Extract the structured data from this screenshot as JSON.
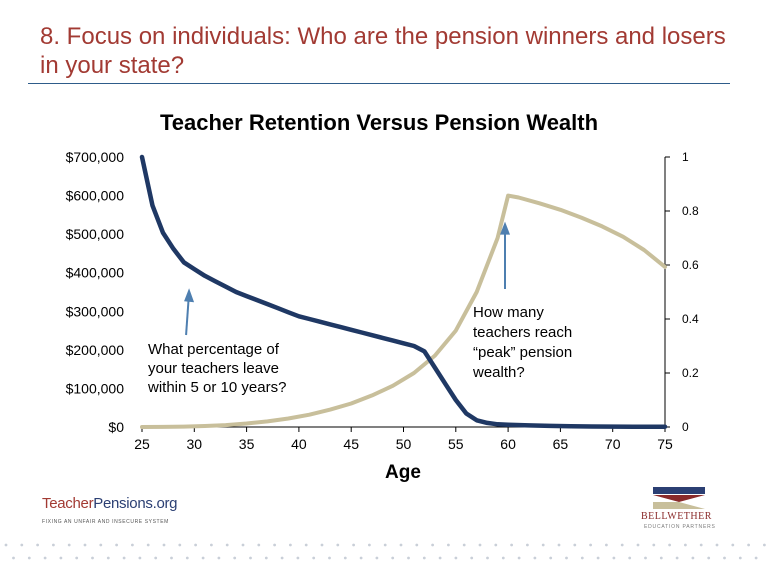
{
  "slide": {
    "title": "8. Focus on individuals: Who are the pension winners and losers in your state?"
  },
  "chart_data": {
    "type": "line",
    "title": "Teacher Retention Versus Pension Wealth",
    "xlabel": "Age",
    "ylabel": "",
    "ylabel_right": "",
    "xlim": [
      25,
      75
    ],
    "ylim": [
      0,
      700000
    ],
    "ylim_right": [
      0,
      1
    ],
    "x_ticks": [
      "25",
      "30",
      "35",
      "40",
      "45",
      "50",
      "55",
      "60",
      "65",
      "70",
      "75"
    ],
    "y_ticks_left": [
      "$0",
      "$100,000",
      "$200,000",
      "$300,000",
      "$400,000",
      "$500,000",
      "$600,000",
      "$700,000"
    ],
    "y_ticks_right": [
      "0",
      "0.2",
      "0.4",
      "0.6",
      "0.8",
      "1"
    ],
    "grid": false,
    "legend": "none",
    "series": [
      {
        "axis": "right",
        "color": "#1f3864",
        "x": [
          25,
          26,
          27,
          28,
          29,
          30,
          31,
          32,
          33,
          34,
          35,
          36,
          37,
          38,
          39,
          40,
          41,
          42,
          43,
          44,
          45,
          46,
          47,
          48,
          49,
          50,
          51,
          52,
          53,
          54,
          55,
          56,
          57,
          58,
          59,
          60,
          62,
          64,
          66,
          68,
          70,
          72,
          74,
          75
        ],
        "y": [
          1.0,
          0.82,
          0.72,
          0.66,
          0.61,
          0.585,
          0.56,
          0.54,
          0.52,
          0.5,
          0.485,
          0.47,
          0.455,
          0.44,
          0.425,
          0.41,
          0.4,
          0.39,
          0.38,
          0.37,
          0.36,
          0.35,
          0.34,
          0.33,
          0.32,
          0.31,
          0.3,
          0.28,
          0.22,
          0.16,
          0.1,
          0.05,
          0.025,
          0.015,
          0.01,
          0.008,
          0.006,
          0.004,
          0.003,
          0.002,
          0.0015,
          0.001,
          0.001,
          0.001
        ]
      },
      {
        "axis": "left",
        "color": "#c8bf9b",
        "x": [
          25,
          27,
          29,
          31,
          33,
          35,
          37,
          39,
          41,
          43,
          45,
          47,
          49,
          51,
          53,
          55,
          57,
          59,
          60,
          61,
          63,
          65,
          67,
          69,
          71,
          73,
          75
        ],
        "y": [
          0,
          300,
          1000,
          2500,
          5000,
          9000,
          14500,
          22000,
          32000,
          45000,
          61000,
          82000,
          107000,
          140000,
          185000,
          250000,
          350000,
          490000,
          600000,
          595000,
          580000,
          563000,
          543000,
          520000,
          493000,
          459000,
          415000
        ]
      }
    ],
    "annotations": [
      {
        "text_lines": [
          "What percentage of",
          "your teachers leave",
          "within 5 or 10 years?"
        ],
        "arrow_x": 29.5,
        "arrow_y_right": 0.51
      },
      {
        "text_lines": [
          "How many",
          "teachers reach",
          "“peak” pension",
          "wealth?"
        ],
        "arrow_x": 59.8,
        "arrow_y_left": 530000
      }
    ]
  },
  "footer": {
    "left_brand_part1": "Teacher",
    "left_brand_part2": "Pensions.org",
    "left_tagline": "FIXING AN UNFAIR AND INSECURE SYSTEM",
    "right_brand": "BELLWETHER",
    "right_sub": "EDUCATION PARTNERS",
    "right_logo_colors": [
      "#2b3f73",
      "#8a2a2a",
      "#c8bf9b"
    ]
  }
}
